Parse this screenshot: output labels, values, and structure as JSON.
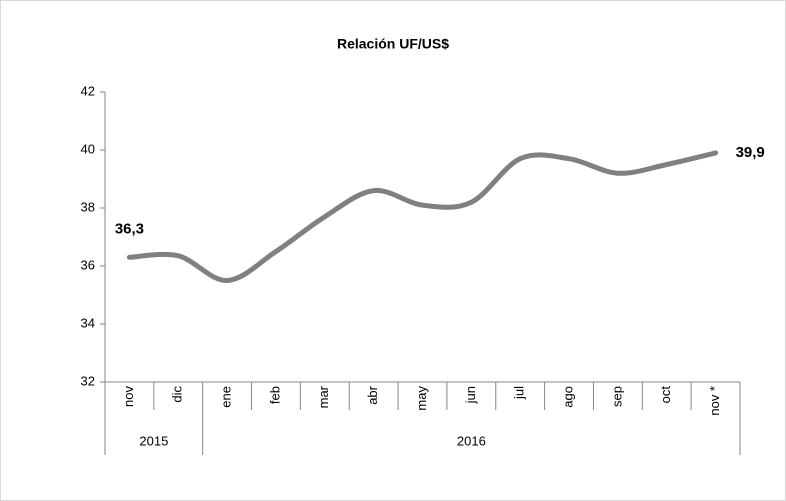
{
  "chart_data": {
    "type": "line",
    "title": "Relación UF/US$",
    "categories": [
      "nov",
      "dic",
      "ene",
      "feb",
      "mar",
      "abr",
      "may",
      "jun",
      "jul",
      "ago",
      "sep",
      "oct",
      "nov *"
    ],
    "x_groups": [
      {
        "label": "2015",
        "count": 2
      },
      {
        "label": "2016",
        "count": 11
      }
    ],
    "series": [
      {
        "name": "UF/US$",
        "color": "#808080",
        "values": [
          36.3,
          36.35,
          35.5,
          36.5,
          37.7,
          38.6,
          38.1,
          38.2,
          39.7,
          39.7,
          39.2,
          39.5,
          39.9
        ],
        "value_labels": [
          "36,3",
          null,
          null,
          null,
          null,
          null,
          null,
          null,
          null,
          null,
          null,
          null,
          "39,9"
        ]
      }
    ],
    "ylim": [
      32,
      42
    ],
    "yticks": [
      32,
      34,
      36,
      38,
      40,
      42
    ]
  }
}
